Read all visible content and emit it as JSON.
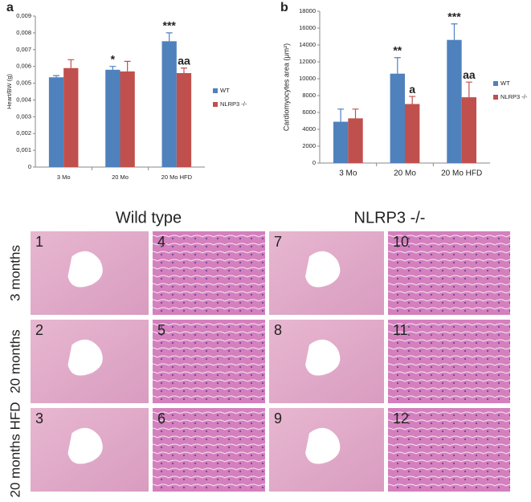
{
  "chart_data": [
    {
      "type": "bar",
      "panel": "a",
      "y_label": "Heart/BW (g)",
      "categories": [
        "3 Mo",
        "20 Mo",
        "20 Mo HFD"
      ],
      "series": [
        {
          "name": "WT",
          "color": "#4f81bd",
          "values": [
            0.00535,
            0.0058,
            0.0075
          ],
          "errors": [
            0.0001,
            0.0002,
            0.0005
          ],
          "annotations": [
            null,
            "*",
            "***"
          ]
        },
        {
          "name": "NLRP3 -/-",
          "color": "#c0504d",
          "values": [
            0.0059,
            0.0057,
            0.0056
          ],
          "errors": [
            0.0005,
            0.0006,
            0.0003
          ],
          "annotations": [
            null,
            null,
            "aa"
          ]
        }
      ],
      "ylim": [
        0,
        0.009
      ],
      "yticks": [
        0,
        {
          "value": 0.001,
          "label": "0,001"
        },
        {
          "value": 0.002,
          "label": "0,002"
        },
        {
          "value": 0.003,
          "label": "0,003"
        },
        {
          "value": 0.004,
          "label": "0,004"
        },
        {
          "value": 0.005,
          "label": "0,005"
        },
        {
          "value": 0.006,
          "label": "0,006"
        },
        {
          "value": 0.007,
          "label": "0,007"
        },
        {
          "value": 0.008,
          "label": "0,008"
        },
        {
          "value": 0.009,
          "label": "0,009"
        }
      ],
      "legend": "right"
    },
    {
      "type": "bar",
      "panel": "b",
      "y_label": "Cardiomyocytes area (μm²)",
      "categories": [
        "3 Mo",
        "20 Mo",
        "20 Mo HFD"
      ],
      "series": [
        {
          "name": "WT",
          "color": "#4f81bd",
          "values": [
            4900,
            10600,
            14600
          ],
          "errors": [
            1500,
            1900,
            1900
          ],
          "annotations": [
            null,
            "**",
            "***"
          ]
        },
        {
          "name": "NLRP3 -/-",
          "color": "#c0504d",
          "values": [
            5300,
            7000,
            7800
          ],
          "errors": [
            1100,
            900,
            1800
          ],
          "annotations": [
            null,
            "a",
            "aa"
          ]
        }
      ],
      "ylim": [
        0,
        18000
      ],
      "yticks": [
        0,
        2000,
        4000,
        6000,
        8000,
        10000,
        12000,
        14000,
        16000,
        18000
      ],
      "legend": "right"
    }
  ],
  "histology": {
    "columns": [
      "Wild type",
      "NLRP3 -/-"
    ],
    "rows": [
      "3 months",
      "20 months",
      "20 months HFD"
    ],
    "panels": [
      "1",
      "2",
      "3",
      "4",
      "5",
      "6",
      "7",
      "8",
      "9",
      "10",
      "11",
      "12"
    ]
  }
}
